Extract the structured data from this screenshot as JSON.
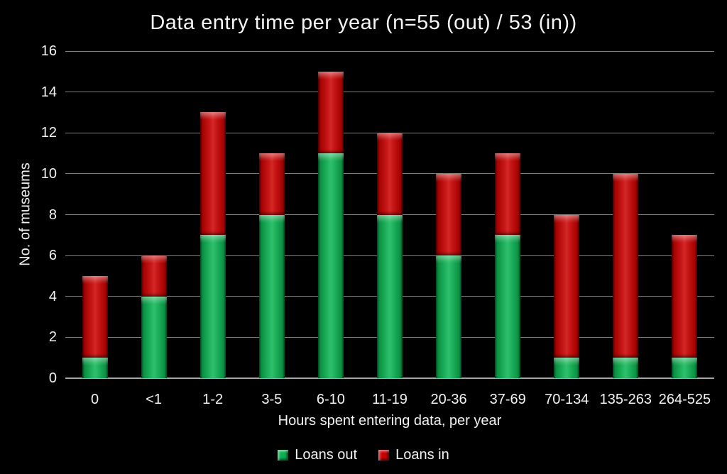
{
  "title": "Data entry time per year (n=55 (out) / 53 (in))",
  "colors": {
    "background": "#000000",
    "loans_out_green": "#0cb151",
    "loans_in_red": "#c80101",
    "gridline": "#7f7f7f",
    "axis_line": "#a6a6a6",
    "text": "#f2f2f2"
  },
  "chart_data": {
    "type": "bar",
    "stacked": true,
    "title": "Data entry time per year (n=55 (out) / 53 (in))",
    "categories": [
      "0",
      "<1",
      "1-2",
      "3-5",
      "6-10",
      "11-19",
      "20-36",
      "37-69",
      "70-134",
      "135-263",
      "264-525"
    ],
    "series": [
      {
        "name": "Loans out",
        "color": "#0cb151",
        "values": [
          1,
          4,
          7,
          8,
          11,
          8,
          6,
          7,
          1,
          1,
          1
        ]
      },
      {
        "name": "Loans in",
        "color": "#c80101",
        "values": [
          4,
          2,
          6,
          3,
          4,
          4,
          4,
          4,
          7,
          9,
          6
        ]
      }
    ],
    "totals": [
      5,
      6,
      13,
      11,
      15,
      12,
      10,
      11,
      8,
      10,
      7
    ],
    "xlabel": "Hours spent entering data, per year",
    "ylabel": "No. of museums",
    "ylim": [
      0,
      16
    ],
    "yticks": [
      0,
      2,
      4,
      6,
      8,
      10,
      12,
      14,
      16
    ],
    "grid": true,
    "legend_position": "bottom"
  }
}
